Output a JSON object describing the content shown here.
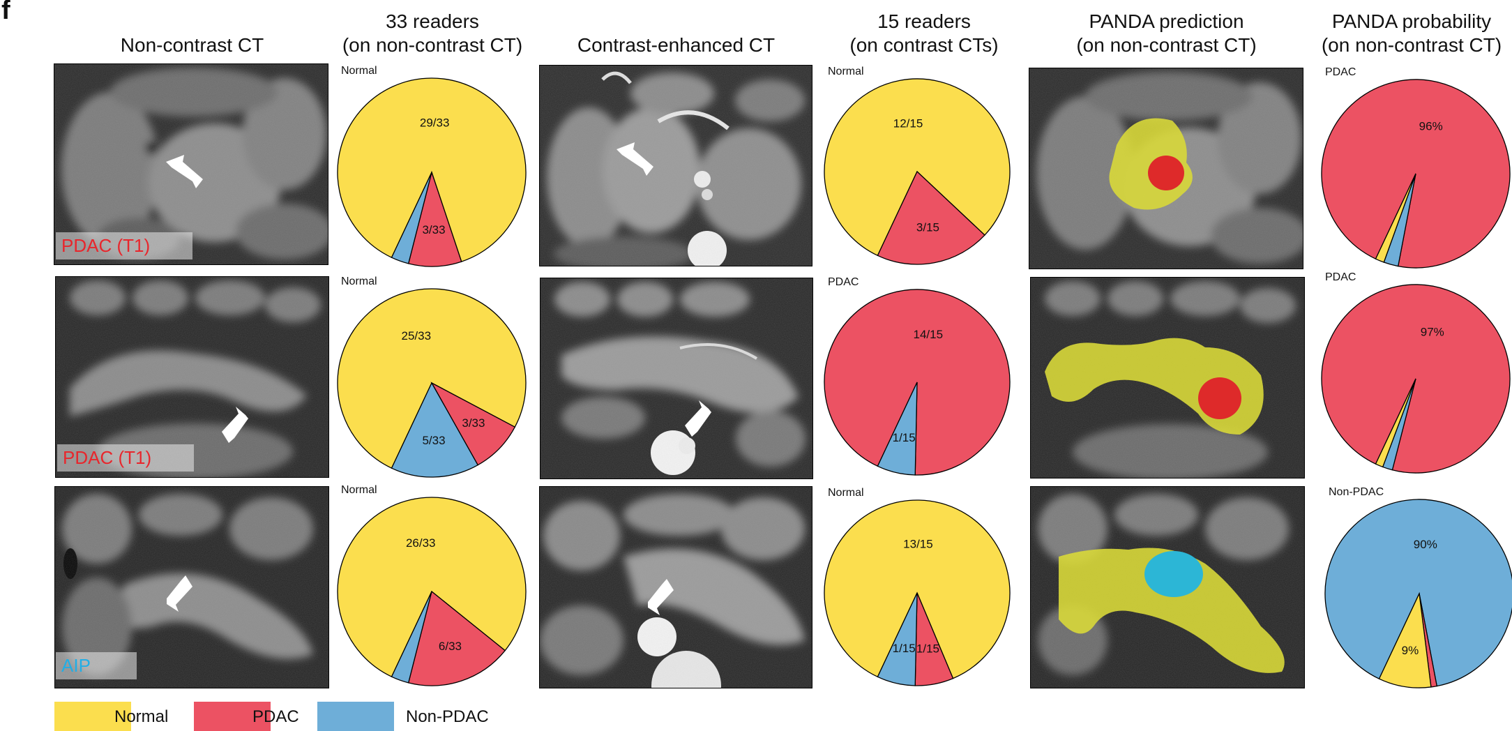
{
  "panel_letter": "f",
  "columns": [
    {
      "lines": [
        "Non-contrast CT"
      ]
    },
    {
      "lines": [
        "33 readers",
        "(on non-contrast CT)"
      ]
    },
    {
      "lines": [
        "Contrast-enhanced CT"
      ]
    },
    {
      "lines": [
        "15 readers",
        "(on contrast CTs)"
      ]
    },
    {
      "lines": [
        "PANDA prediction",
        "(on non-contrast CT)"
      ]
    },
    {
      "lines": [
        "PANDA probability",
        "(on non-contrast CT)"
      ]
    }
  ],
  "diagnoses": [
    {
      "label": "PDAC (T1)",
      "color": "#e8262c"
    },
    {
      "label": "PDAC (T1)",
      "color": "#e8262c"
    },
    {
      "label": "AIP",
      "color": "#22aee6"
    }
  ],
  "colors": {
    "Normal": "#fbde4e",
    "PDAC": "#ec5263",
    "Non-PDAC": "#6eaed8"
  },
  "legend": [
    {
      "label": "Normal",
      "color": "#fbde4e"
    },
    {
      "label": "PDAC",
      "color": "#ec5263"
    },
    {
      "label": "Non-PDAC",
      "color": "#6eaed8"
    }
  ],
  "chart_data": [
    {
      "type": "pie",
      "title": "33 readers (on non-contrast CT)",
      "row": 1,
      "corner_label": "Normal",
      "slices": [
        {
          "name": "Normal",
          "value": 29,
          "label": "29/33"
        },
        {
          "name": "PDAC",
          "value": 3,
          "label": "3/33"
        },
        {
          "name": "Non-PDAC",
          "value": 1,
          "label": ""
        }
      ]
    },
    {
      "type": "pie",
      "title": "15 readers (on contrast CTs)",
      "row": 1,
      "corner_label": "Normal",
      "slices": [
        {
          "name": "Normal",
          "value": 12,
          "label": "12/15"
        },
        {
          "name": "PDAC",
          "value": 3,
          "label": "3/15"
        },
        {
          "name": "Non-PDAC",
          "value": 0,
          "label": ""
        }
      ]
    },
    {
      "type": "pie",
      "title": "PANDA probability (on non-contrast CT)",
      "row": 1,
      "corner_label": "PDAC",
      "slices": [
        {
          "name": "PDAC",
          "value": 96,
          "label": "96%"
        },
        {
          "name": "Non-PDAC",
          "value": 2.5,
          "label": ""
        },
        {
          "name": "Normal",
          "value": 1.5,
          "label": ""
        }
      ]
    },
    {
      "type": "pie",
      "title": "33 readers (on non-contrast CT)",
      "row": 2,
      "corner_label": "Normal",
      "slices": [
        {
          "name": "Normal",
          "value": 25,
          "label": "25/33"
        },
        {
          "name": "PDAC",
          "value": 3,
          "label": "3/33"
        },
        {
          "name": "Non-PDAC",
          "value": 5,
          "label": "5/33"
        }
      ]
    },
    {
      "type": "pie",
      "title": "15 readers (on contrast CTs)",
      "row": 2,
      "corner_label": "PDAC",
      "slices": [
        {
          "name": "PDAC",
          "value": 14,
          "label": "14/15"
        },
        {
          "name": "Non-PDAC",
          "value": 1,
          "label": "1/15"
        }
      ]
    },
    {
      "type": "pie",
      "title": "PANDA probability (on non-contrast CT)",
      "row": 2,
      "corner_label": "PDAC",
      "slices": [
        {
          "name": "PDAC",
          "value": 97,
          "label": "97%"
        },
        {
          "name": "Non-PDAC",
          "value": 1.7,
          "label": ""
        },
        {
          "name": "Normal",
          "value": 1.3,
          "label": ""
        }
      ]
    },
    {
      "type": "pie",
      "title": "33 readers (on non-contrast CT)",
      "row": 3,
      "corner_label": "Normal",
      "slices": [
        {
          "name": "Normal",
          "value": 26,
          "label": "26/33"
        },
        {
          "name": "PDAC",
          "value": 6,
          "label": "6/33"
        },
        {
          "name": "Non-PDAC",
          "value": 1,
          "label": ""
        }
      ]
    },
    {
      "type": "pie",
      "title": "15 readers (on contrast CTs)",
      "row": 3,
      "corner_label": "Normal",
      "slices": [
        {
          "name": "Normal",
          "value": 13,
          "label": "13/15"
        },
        {
          "name": "PDAC",
          "value": 1,
          "label": "1/15"
        },
        {
          "name": "Non-PDAC",
          "value": 1,
          "label": "1/15"
        }
      ]
    },
    {
      "type": "pie",
      "title": "PANDA probability (on non-contrast CT)",
      "row": 3,
      "corner_label": "Non-PDAC",
      "slices": [
        {
          "name": "Non-PDAC",
          "value": 90,
          "label": "90%"
        },
        {
          "name": "PDAC",
          "value": 1,
          "label": ""
        },
        {
          "name": "Normal",
          "value": 9,
          "label": "9%"
        }
      ]
    }
  ]
}
